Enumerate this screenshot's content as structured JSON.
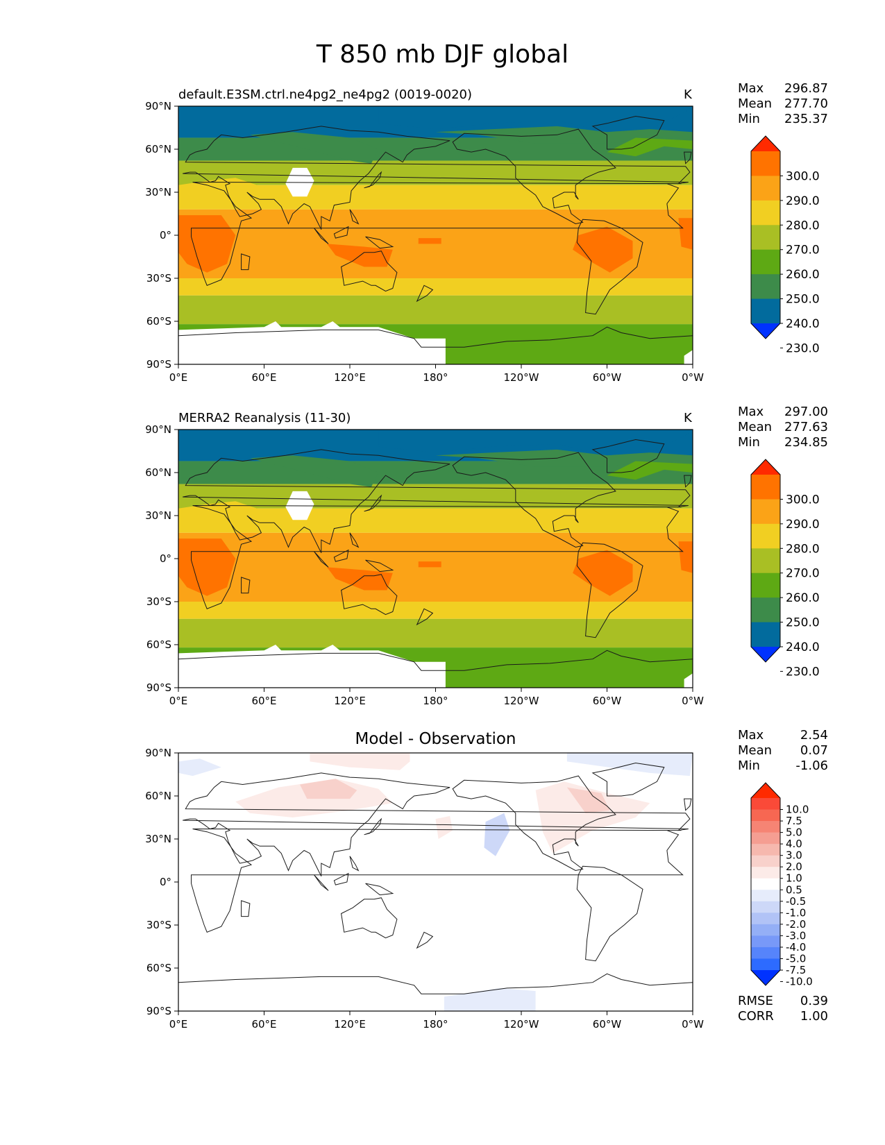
{
  "chart_data": {
    "title": "T 850 mb DJF global",
    "panels": [
      {
        "type": "heatmap",
        "title": "default.E3SM.ctrl.ne4pg2_ne4pg2 (0019-0020)",
        "units": "K",
        "stats": {
          "max_label": "Max",
          "max": "296.87",
          "mean_label": "Mean",
          "mean": "277.70",
          "min_label": "Min",
          "min": "235.37"
        },
        "levels": [
          "300.0",
          "290.0",
          "280.0",
          "270.0",
          "260.0",
          "250.0",
          "240.0",
          "230.0"
        ],
        "colors": [
          "#ff2a00",
          "#ff7300",
          "#fba317",
          "#f1cf22",
          "#a9bf24",
          "#5ea914",
          "#3d8b4a",
          "#026b9d",
          "#0032ff"
        ],
        "zonal_bands_K": [
          {
            "lat": [
              68,
              90
            ],
            "value": 238
          },
          {
            "lat": [
              52,
              68
            ],
            "value": 248
          },
          {
            "lat": [
              35,
              52
            ],
            "value": 262
          },
          {
            "lat": [
              18,
              35
            ],
            "value": 275
          },
          {
            "lat": [
              -30,
              18
            ],
            "value": 284
          },
          {
            "lat": [
              -42,
              -30
            ],
            "value": 275
          },
          {
            "lat": [
              -62,
              -42
            ],
            "value": 265
          },
          {
            "lat": [
              -90,
              -62
            ],
            "value": 255
          }
        ]
      },
      {
        "type": "heatmap",
        "title": "MERRA2 Reanalysis (11-30)",
        "units": "K",
        "stats": {
          "max_label": "Max",
          "max": "297.00",
          "mean_label": "Mean",
          "mean": "277.63",
          "min_label": "Min",
          "min": "234.85"
        },
        "levels": [
          "300.0",
          "290.0",
          "280.0",
          "270.0",
          "260.0",
          "250.0",
          "240.0",
          "230.0"
        ],
        "colors": [
          "#ff2a00",
          "#ff7300",
          "#fba317",
          "#f1cf22",
          "#a9bf24",
          "#5ea914",
          "#3d8b4a",
          "#026b9d",
          "#0032ff"
        ],
        "zonal_bands_K": [
          {
            "lat": [
              68,
              90
            ],
            "value": 238
          },
          {
            "lat": [
              52,
              68
            ],
            "value": 248
          },
          {
            "lat": [
              35,
              52
            ],
            "value": 262
          },
          {
            "lat": [
              18,
              35
            ],
            "value": 275
          },
          {
            "lat": [
              -30,
              18
            ],
            "value": 284
          },
          {
            "lat": [
              -42,
              -30
            ],
            "value": 275
          },
          {
            "lat": [
              -62,
              -42
            ],
            "value": 265
          },
          {
            "lat": [
              -90,
              -62
            ],
            "value": 255
          }
        ]
      },
      {
        "type": "heatmap",
        "title": "Model - Observation",
        "units": "",
        "stats": {
          "max_label": "Max",
          "max": "2.54",
          "mean_label": "Mean",
          "mean": "0.07",
          "min_label": "Min",
          "min": "-1.06"
        },
        "levels": [
          "10.0",
          "7.5",
          "5.0",
          "4.0",
          "3.0",
          "2.0",
          "1.0",
          "0.5",
          "-0.5",
          "-1.0",
          "-2.0",
          "-3.0",
          "-4.0",
          "-5.0",
          "-7.5",
          "-10.0"
        ],
        "colors": [
          "#ff2a00",
          "#fa4a38",
          "#f76752",
          "#f68474",
          "#f59e92",
          "#f6b8ae",
          "#f8d1cb",
          "#fcebe8",
          "#ffffff",
          "#e6ecfb",
          "#cdd8f8",
          "#b1c3f6",
          "#94aff6",
          "#7899f8",
          "#5684fb",
          "#2d6bff",
          "#0032ff"
        ],
        "rmse_label": "RMSE",
        "rmse": "0.39",
        "corr_label": "CORR",
        "corr": "1.00"
      }
    ],
    "xticks": [
      "0°E",
      "60°E",
      "120°E",
      "180°",
      "120°W",
      "60°W",
      "0°W"
    ],
    "yticks": [
      "90°N",
      "60°N",
      "30°N",
      "0°",
      "30°S",
      "60°S",
      "90°S"
    ],
    "xlim": [
      0,
      360
    ],
    "ylim": [
      -90,
      90
    ]
  }
}
